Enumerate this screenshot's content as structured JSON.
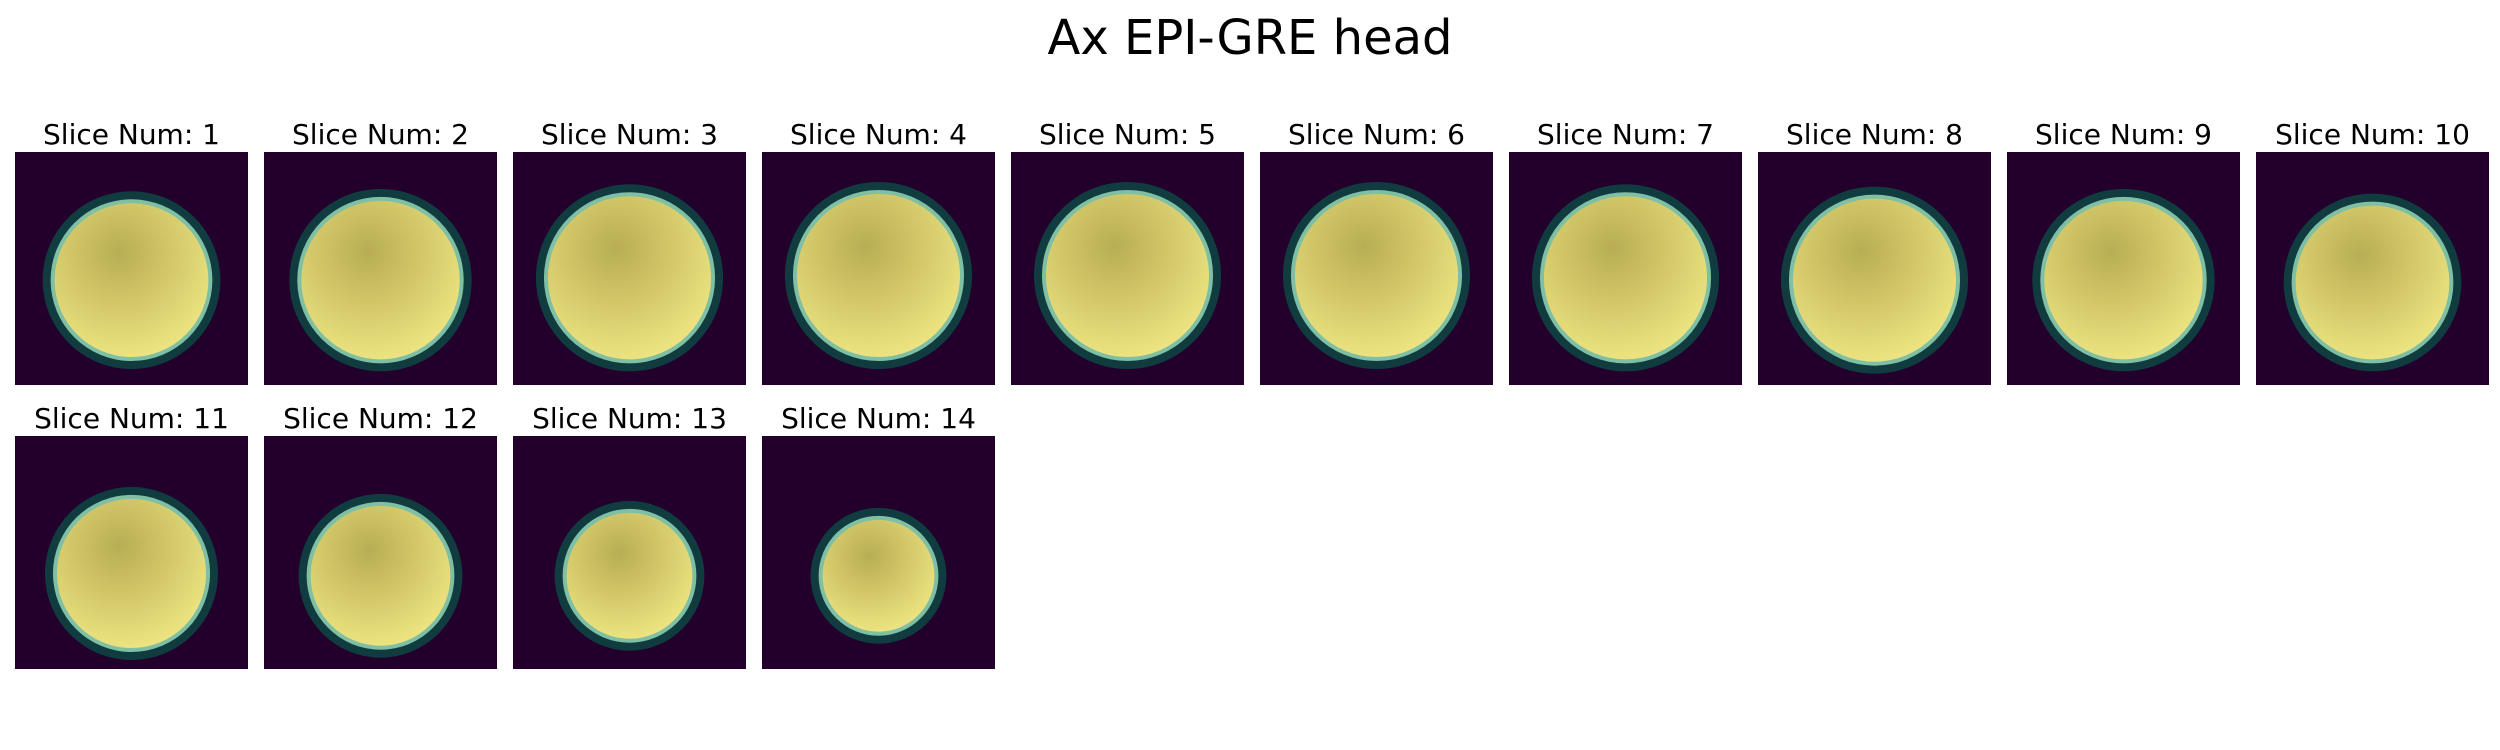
{
  "title": "Ax EPI-GRE head",
  "colors": {
    "background": "#22002b",
    "rim_outer": "#103c40",
    "rim_inner": "#7fbfa3",
    "fill_center": "#b8ad52",
    "fill_edge": "#f5ec88"
  },
  "slices": [
    {
      "label": "Slice Num: 1",
      "radius": 0.33,
      "cy": 0.55
    },
    {
      "label": "Slice Num: 2",
      "radius": 0.34,
      "cy": 0.55
    },
    {
      "label": "Slice Num: 3",
      "radius": 0.35,
      "cy": 0.54
    },
    {
      "label": "Slice Num: 4",
      "radius": 0.35,
      "cy": 0.53
    },
    {
      "label": "Slice Num: 5",
      "radius": 0.35,
      "cy": 0.53
    },
    {
      "label": "Slice Num: 6",
      "radius": 0.35,
      "cy": 0.53
    },
    {
      "label": "Slice Num: 7",
      "radius": 0.35,
      "cy": 0.54
    },
    {
      "label": "Slice Num: 8",
      "radius": 0.35,
      "cy": 0.55
    },
    {
      "label": "Slice Num: 9",
      "radius": 0.34,
      "cy": 0.55
    },
    {
      "label": "Slice Num: 10",
      "radius": 0.33,
      "cy": 0.56
    },
    {
      "label": "Slice Num: 11",
      "radius": 0.32,
      "cy": 0.59
    },
    {
      "label": "Slice Num: 12",
      "radius": 0.3,
      "cy": 0.6
    },
    {
      "label": "Slice Num: 13",
      "radius": 0.27,
      "cy": 0.6
    },
    {
      "label": "Slice Num: 14",
      "radius": 0.24,
      "cy": 0.6
    }
  ]
}
